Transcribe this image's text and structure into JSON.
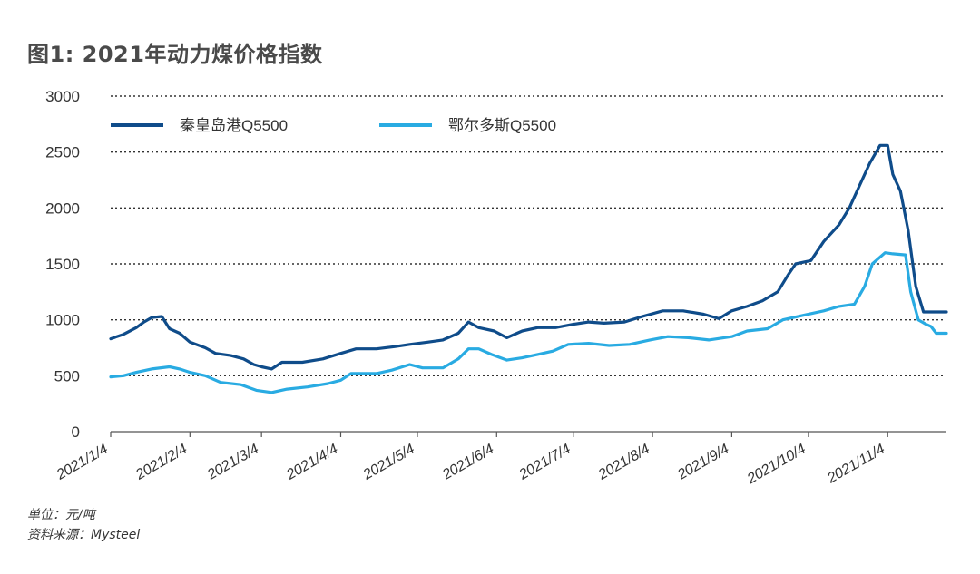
{
  "title": "图1: 2021年动力煤价格指数",
  "footer": {
    "unit": "单位：元/吨",
    "source": "资料来源：Mysteel"
  },
  "colors": {
    "series1": "#0f4c8a",
    "series2": "#29abe2",
    "grid": "#333333",
    "text": "#333333"
  },
  "chart_data": {
    "type": "line",
    "title": "图1: 2021年动力煤价格指数",
    "xlabel": "",
    "ylabel": "",
    "ylim": [
      0,
      3000
    ],
    "yticks": [
      0,
      500,
      1000,
      1500,
      2000,
      2500,
      3000
    ],
    "xlim": [
      "2021-01-04",
      "2021-11-27"
    ],
    "xticks": [
      {
        "date": "2021-01-04",
        "label": "2021/1/4"
      },
      {
        "date": "2021-02-04",
        "label": "2021/2/4"
      },
      {
        "date": "2021-03-04",
        "label": "2021/3/4"
      },
      {
        "date": "2021-04-04",
        "label": "2021/4/4"
      },
      {
        "date": "2021-05-04",
        "label": "2021/5/4"
      },
      {
        "date": "2021-06-04",
        "label": "2021/6/4"
      },
      {
        "date": "2021-07-04",
        "label": "2021/7/4"
      },
      {
        "date": "2021-08-04",
        "label": "2021/8/4"
      },
      {
        "date": "2021-09-04",
        "label": "2021/9/4"
      },
      {
        "date": "2021-10-04",
        "label": "2021/10/4"
      },
      {
        "date": "2021-11-04",
        "label": "2021/11/4"
      }
    ],
    "grid": true,
    "legend_position": "top-left",
    "series": [
      {
        "name": "秦皇岛港Q5500",
        "color": "#0f4c8a",
        "points": [
          [
            "2021-01-04",
            830
          ],
          [
            "2021-01-09",
            870
          ],
          [
            "2021-01-14",
            930
          ],
          [
            "2021-01-17",
            980
          ],
          [
            "2021-01-20",
            1020
          ],
          [
            "2021-01-24",
            1030
          ],
          [
            "2021-01-27",
            920
          ],
          [
            "2021-01-31",
            880
          ],
          [
            "2021-02-04",
            800
          ],
          [
            "2021-02-10",
            750
          ],
          [
            "2021-02-14",
            700
          ],
          [
            "2021-02-20",
            680
          ],
          [
            "2021-02-25",
            650
          ],
          [
            "2021-03-01",
            600
          ],
          [
            "2021-03-04",
            580
          ],
          [
            "2021-03-08",
            560
          ],
          [
            "2021-03-12",
            620
          ],
          [
            "2021-03-20",
            620
          ],
          [
            "2021-03-28",
            650
          ],
          [
            "2021-04-04",
            700
          ],
          [
            "2021-04-10",
            740
          ],
          [
            "2021-04-18",
            740
          ],
          [
            "2021-04-25",
            760
          ],
          [
            "2021-05-01",
            780
          ],
          [
            "2021-05-08",
            800
          ],
          [
            "2021-05-14",
            820
          ],
          [
            "2021-05-20",
            880
          ],
          [
            "2021-05-24",
            980
          ],
          [
            "2021-05-28",
            930
          ],
          [
            "2021-06-03",
            900
          ],
          [
            "2021-06-08",
            840
          ],
          [
            "2021-06-14",
            900
          ],
          [
            "2021-06-20",
            930
          ],
          [
            "2021-06-27",
            930
          ],
          [
            "2021-07-04",
            960
          ],
          [
            "2021-07-10",
            980
          ],
          [
            "2021-07-16",
            970
          ],
          [
            "2021-07-24",
            980
          ],
          [
            "2021-07-31",
            1030
          ],
          [
            "2021-08-08",
            1080
          ],
          [
            "2021-08-16",
            1080
          ],
          [
            "2021-08-24",
            1050
          ],
          [
            "2021-08-30",
            1010
          ],
          [
            "2021-09-04",
            1080
          ],
          [
            "2021-09-10",
            1120
          ],
          [
            "2021-09-16",
            1170
          ],
          [
            "2021-09-22",
            1250
          ],
          [
            "2021-09-26",
            1400
          ],
          [
            "2021-09-29",
            1500
          ],
          [
            "2021-10-05",
            1530
          ],
          [
            "2021-10-10",
            1700
          ],
          [
            "2021-10-16",
            1850
          ],
          [
            "2021-10-20",
            2000
          ],
          [
            "2021-10-24",
            2200
          ],
          [
            "2021-10-28",
            2400
          ],
          [
            "2021-11-01",
            2560
          ],
          [
            "2021-11-04",
            2560
          ],
          [
            "2021-11-06",
            2300
          ],
          [
            "2021-11-09",
            2150
          ],
          [
            "2021-11-12",
            1800
          ],
          [
            "2021-11-15",
            1300
          ],
          [
            "2021-11-18",
            1070
          ],
          [
            "2021-11-27",
            1070
          ]
        ]
      },
      {
        "name": "鄂尔多斯Q5500",
        "color": "#29abe2",
        "points": [
          [
            "2021-01-04",
            490
          ],
          [
            "2021-01-09",
            500
          ],
          [
            "2021-01-14",
            530
          ],
          [
            "2021-01-20",
            560
          ],
          [
            "2021-01-27",
            580
          ],
          [
            "2021-01-31",
            560
          ],
          [
            "2021-02-04",
            530
          ],
          [
            "2021-02-10",
            500
          ],
          [
            "2021-02-16",
            440
          ],
          [
            "2021-02-24",
            420
          ],
          [
            "2021-03-02",
            370
          ],
          [
            "2021-03-08",
            350
          ],
          [
            "2021-03-14",
            380
          ],
          [
            "2021-03-22",
            400
          ],
          [
            "2021-03-30",
            430
          ],
          [
            "2021-04-04",
            460
          ],
          [
            "2021-04-08",
            520
          ],
          [
            "2021-04-18",
            520
          ],
          [
            "2021-04-24",
            550
          ],
          [
            "2021-05-01",
            600
          ],
          [
            "2021-05-06",
            570
          ],
          [
            "2021-05-14",
            570
          ],
          [
            "2021-05-20",
            650
          ],
          [
            "2021-05-24",
            740
          ],
          [
            "2021-05-28",
            740
          ],
          [
            "2021-06-02",
            690
          ],
          [
            "2021-06-08",
            640
          ],
          [
            "2021-06-14",
            660
          ],
          [
            "2021-06-20",
            690
          ],
          [
            "2021-06-26",
            720
          ],
          [
            "2021-07-02",
            780
          ],
          [
            "2021-07-10",
            790
          ],
          [
            "2021-07-18",
            770
          ],
          [
            "2021-07-26",
            780
          ],
          [
            "2021-08-03",
            820
          ],
          [
            "2021-08-10",
            850
          ],
          [
            "2021-08-18",
            840
          ],
          [
            "2021-08-26",
            820
          ],
          [
            "2021-09-04",
            850
          ],
          [
            "2021-09-10",
            900
          ],
          [
            "2021-09-18",
            920
          ],
          [
            "2021-09-24",
            1000
          ],
          [
            "2021-10-02",
            1040
          ],
          [
            "2021-10-10",
            1080
          ],
          [
            "2021-10-16",
            1120
          ],
          [
            "2021-10-22",
            1140
          ],
          [
            "2021-10-26",
            1300
          ],
          [
            "2021-10-29",
            1500
          ],
          [
            "2021-11-03",
            1600
          ],
          [
            "2021-11-06",
            1590
          ],
          [
            "2021-11-11",
            1580
          ],
          [
            "2021-11-13",
            1250
          ],
          [
            "2021-11-16",
            1000
          ],
          [
            "2021-11-19",
            960
          ],
          [
            "2021-11-21",
            940
          ],
          [
            "2021-11-23",
            880
          ],
          [
            "2021-11-27",
            880
          ]
        ]
      }
    ]
  }
}
